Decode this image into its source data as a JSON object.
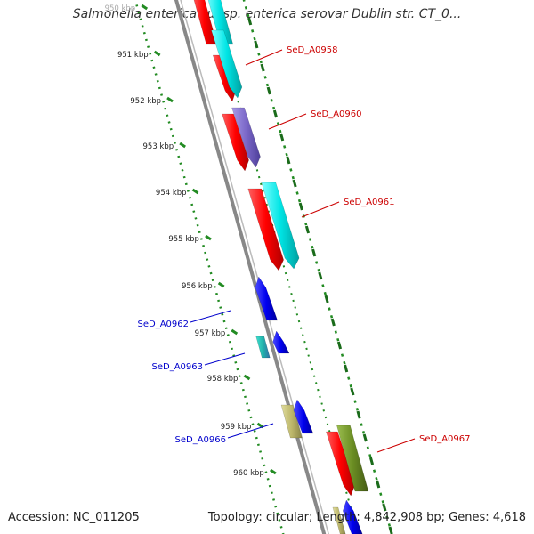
{
  "title": "Salmonella enterica subsp. enterica serovar Dublin str. CT_0...",
  "footer": {
    "accession": "Accession: NC_011205",
    "summary": "Topology: circular; Length: 4,842,908 bp; Genes: 4,618"
  },
  "kbp_ticks": [
    {
      "label": "950 kbp",
      "faded": true
    },
    {
      "label": "951 kbp"
    },
    {
      "label": "952 kbp"
    },
    {
      "label": "953 kbp"
    },
    {
      "label": "954 kbp"
    },
    {
      "label": "955 kbp"
    },
    {
      "label": "956 kbp"
    },
    {
      "label": "957 kbp"
    },
    {
      "label": "958 kbp"
    },
    {
      "label": "959 kbp"
    },
    {
      "label": "960 kbp"
    }
  ],
  "gene_labels": [
    {
      "label": "SeD_A0958",
      "color": "#cc0000",
      "side": "right"
    },
    {
      "label": "SeD_A0960",
      "color": "#cc0000",
      "side": "right"
    },
    {
      "label": "SeD_A0961",
      "color": "#cc0000",
      "side": "right"
    },
    {
      "label": "SeD_A0962",
      "color": "#0000cc",
      "side": "left"
    },
    {
      "label": "SeD_A0963",
      "color": "#0000cc",
      "side": "left"
    },
    {
      "label": "SeD_A0966",
      "color": "#0000cc",
      "side": "left"
    },
    {
      "label": "SeD_A0967",
      "color": "#cc0000",
      "side": "right"
    }
  ],
  "colors": {
    "backbone": "#888888",
    "tick_green": "#228b22",
    "cds_red": "#ff0000",
    "cds_cyan": "#00e5e5",
    "cds_purple": "#7b68c8",
    "cds_blue": "#0000ee",
    "cds_olive": "#6b8e23",
    "cds_khaki": "#bdb76b"
  }
}
